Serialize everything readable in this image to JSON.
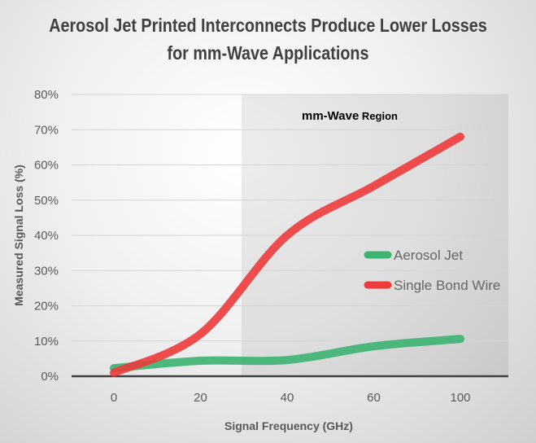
{
  "chart_data": {
    "type": "line",
    "title": [
      "Aerosol Jet Printed Interconnects Produce Lower Losses",
      "for mm-Wave Applications"
    ],
    "xlabel": "Signal Frequency (GHz)",
    "ylabel": "Measured Signal Loss (%)",
    "categories": [
      "0",
      "20",
      "40",
      "60",
      "100"
    ],
    "yticks": [
      "0%",
      "10%",
      "20%",
      "30%",
      "40%",
      "50%",
      "60%",
      "70%",
      "80%"
    ],
    "ylim": [
      0,
      80
    ],
    "grid": true,
    "legend": "right",
    "annotation": {
      "bold": "mm-Wave",
      "rest": " Region"
    },
    "series": [
      {
        "name": "Aerosol Jet",
        "color": "#3cb371",
        "values": [
          2.3,
          4.4,
          4.6,
          8.5,
          10.6
        ]
      },
      {
        "name": "Single Bond Wire",
        "color": "#ee3b3b",
        "values": [
          1,
          12,
          40,
          54,
          68
        ]
      }
    ]
  }
}
